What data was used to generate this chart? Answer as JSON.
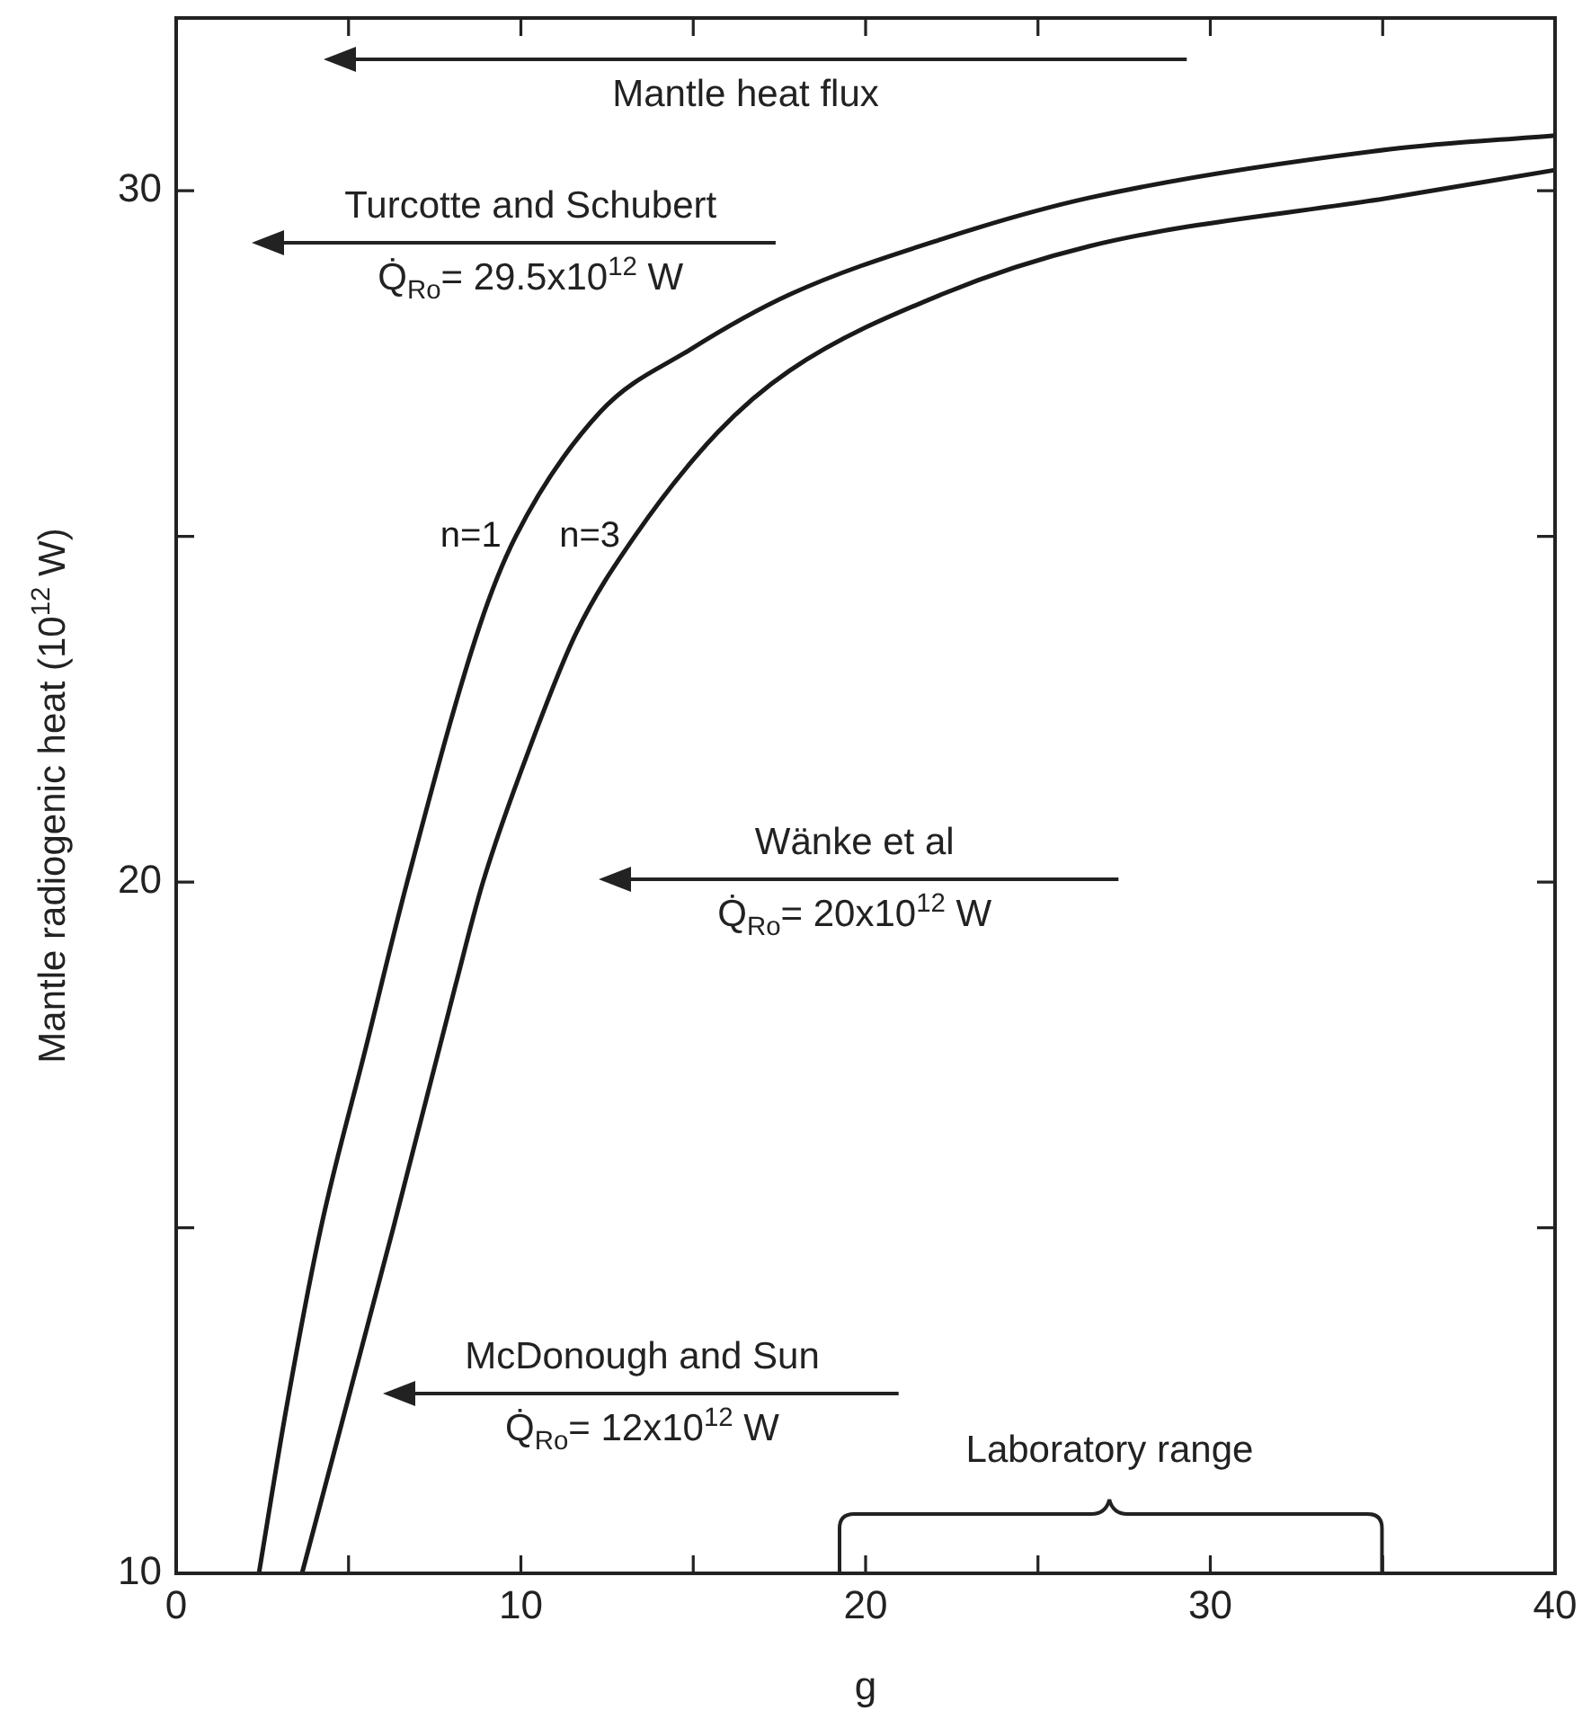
{
  "chart_data": {
    "type": "line",
    "xlabel": "g",
    "ylabel": "Mantle radiogenic heat (10$^{12}$ W)",
    "xlim": [
      0,
      40
    ],
    "ylim": [
      10,
      32.5
    ],
    "xticks": [
      0,
      {
        "value": 5,
        "label": null
      },
      10,
      {
        "value": 15,
        "label": null
      },
      20,
      {
        "value": 25,
        "label": null
      },
      30,
      {
        "value": 35,
        "label": null
      },
      40
    ],
    "yticks": [
      10,
      {
        "value": 15,
        "label": null
      },
      20,
      {
        "value": 25,
        "label": null
      },
      30
    ],
    "grid": false,
    "legend": false,
    "marker": "none",
    "line_style": "solid",
    "series": [
      {
        "name": "n=1",
        "color": "#1a1a1a",
        "x": [
          2.4,
          3.2,
          4.2,
          5.5,
          6.7,
          8.8,
          9.85,
          12.3,
          14.9,
          17.8,
          22.2,
          26.5,
          35.2,
          40
        ],
        "values": [
          10,
          12.4,
          15,
          17.6,
          20,
          23.7,
          25,
          26.8,
          27.7,
          28.5,
          29.3,
          29.9,
          30.6,
          30.8
        ]
      },
      {
        "name": "n=3",
        "color": "#1a1a1a",
        "x": [
          3.65,
          6.3,
          8.1,
          8.9,
          10.3,
          11.6,
          13.3,
          15.7,
          17.8,
          22.2,
          26.5,
          35.2,
          40
        ],
        "values": [
          10,
          15,
          18.5,
          20,
          22,
          23.6,
          25,
          26.5,
          27.4,
          28.5,
          29.2,
          29.9,
          30.3
        ]
      }
    ],
    "annotations": [
      "Mantle heat flux",
      "Turcotte and Schubert\nQ̇$_{Ro}$= 29.5x10$^{12}$ W",
      "Wänke et al\nQ̇$_{Ro}$= 20x10$^{12}$ W",
      "McDonough and Sun\nQ̇$_{Ro}$= 12x10$^{12}$ W",
      "Laboratory range"
    ]
  }
}
